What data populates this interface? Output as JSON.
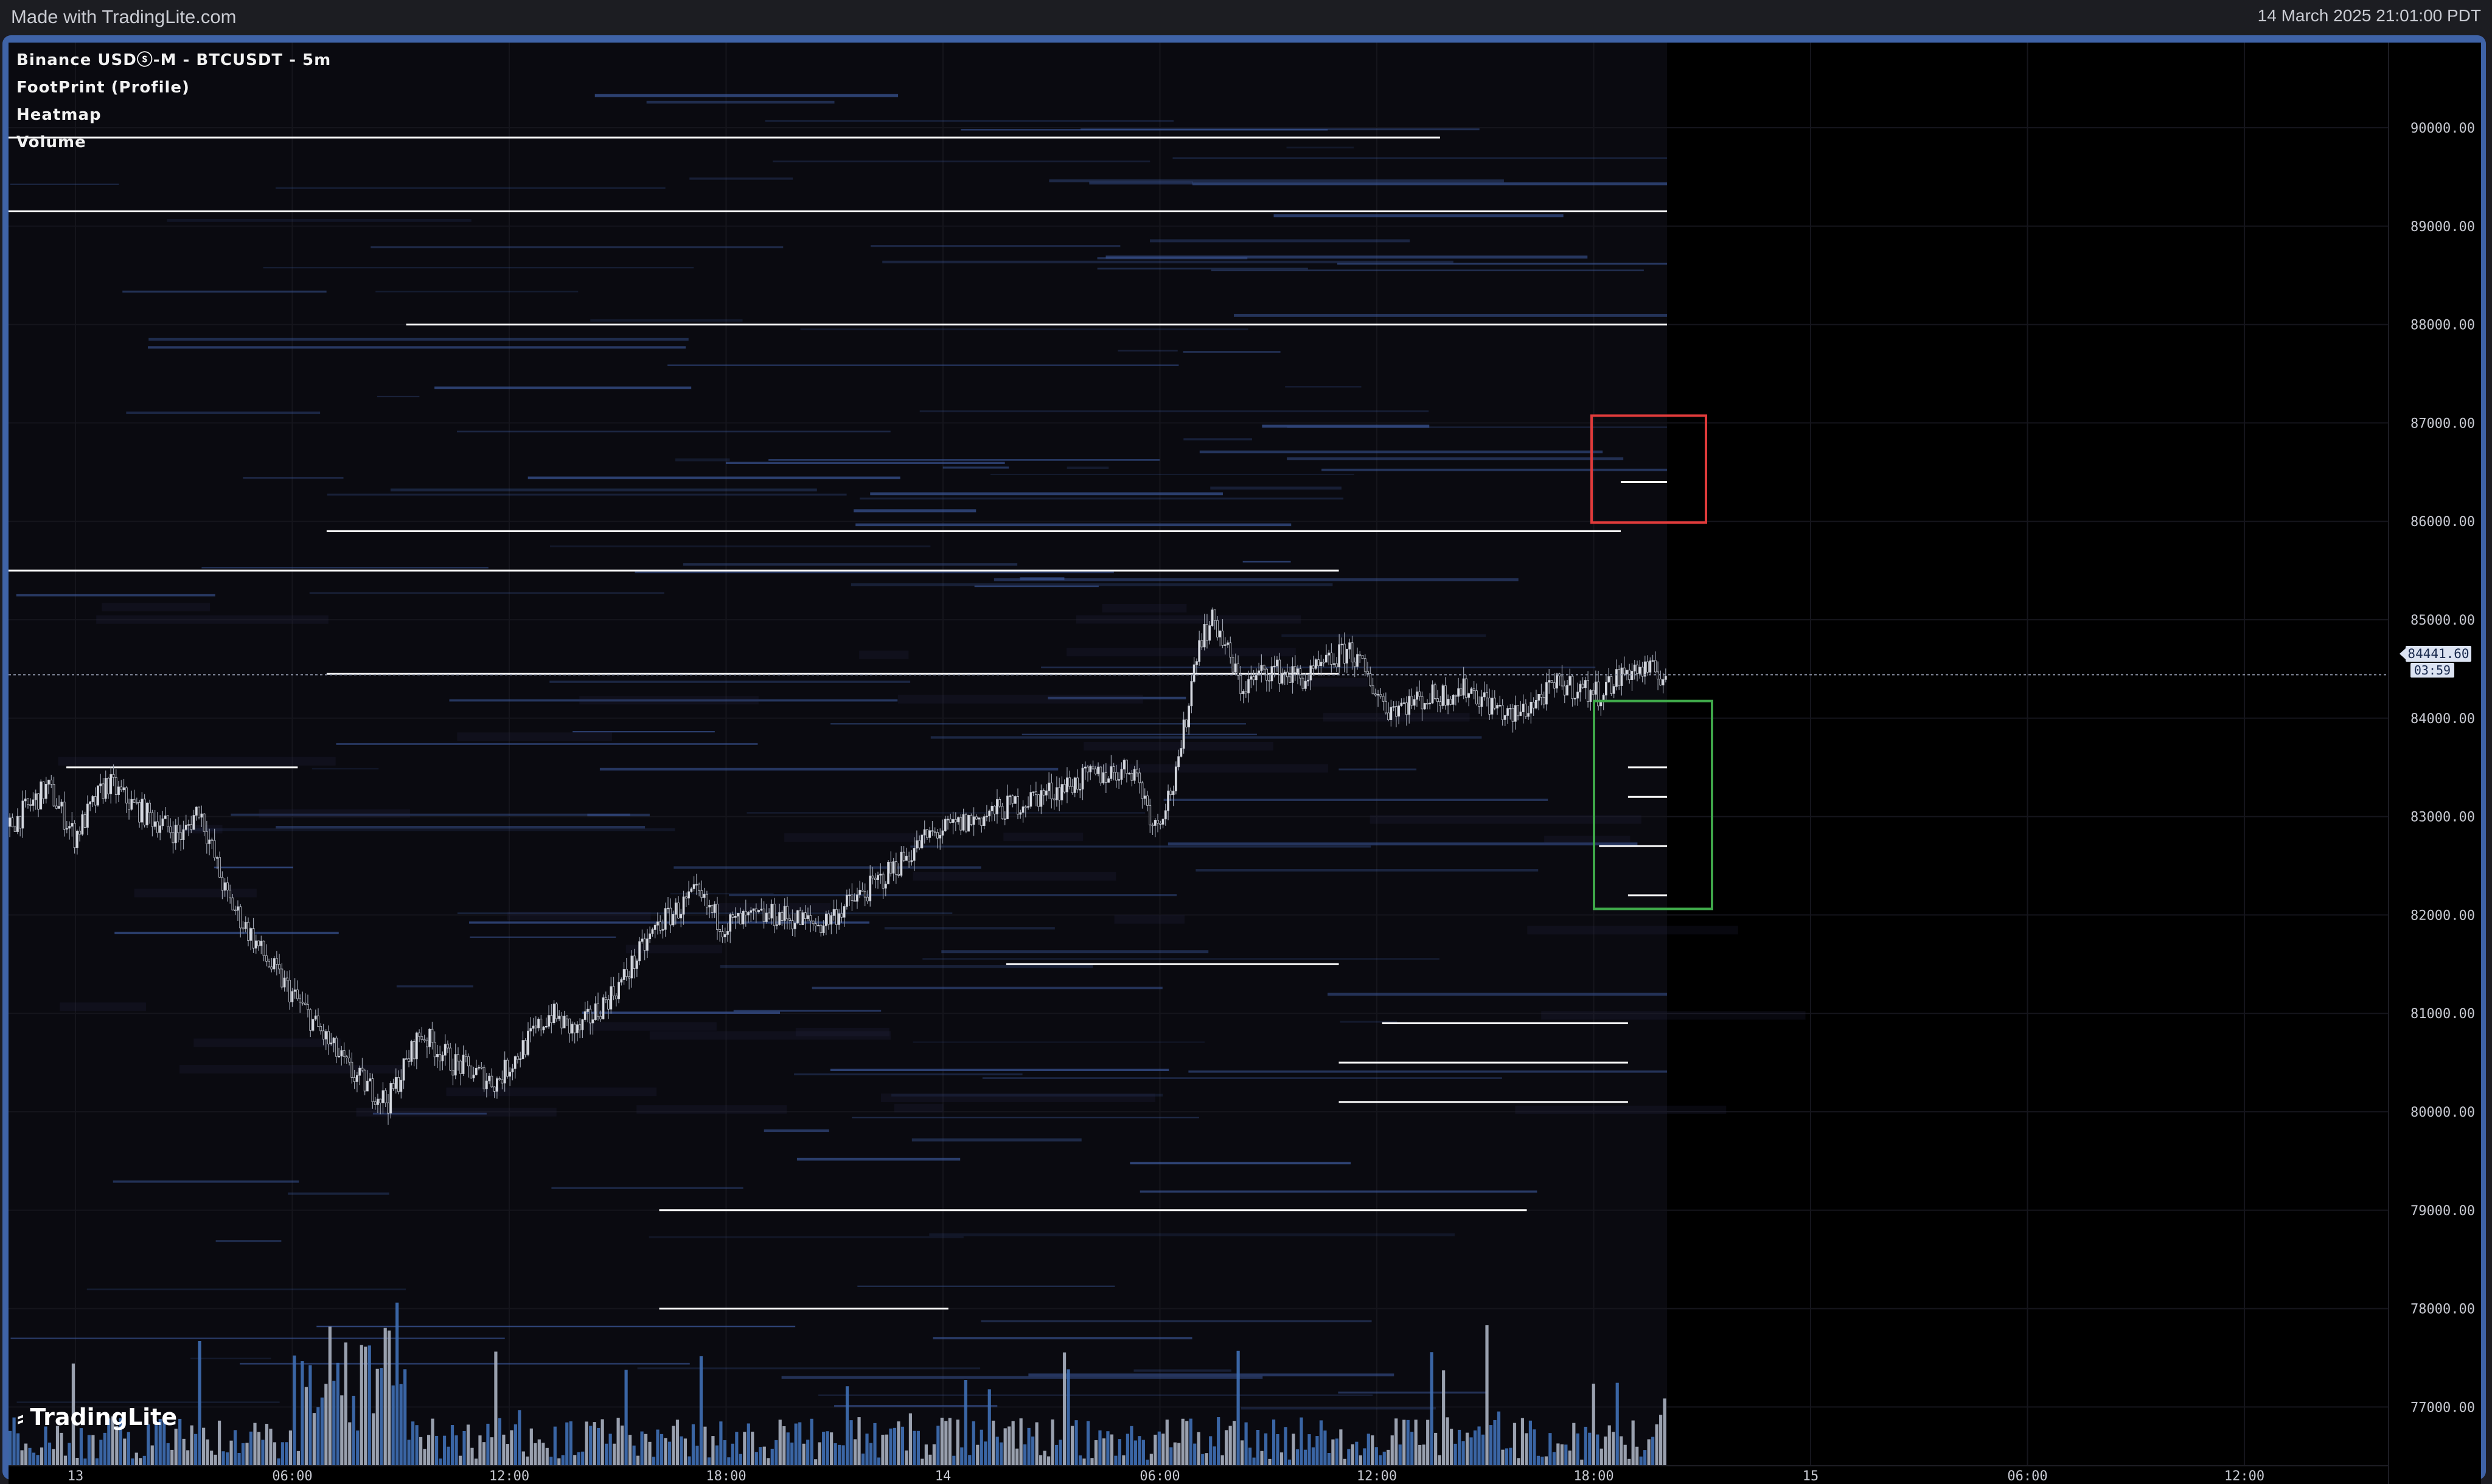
{
  "header": {
    "made_with": "Made with TradingLite.com",
    "timestamp": "14 March 2025 21:01:00 PDT"
  },
  "legend": {
    "instrument": "Binance USDⓢ-M - BTCUSDT - 5m",
    "indicators": [
      "FootPrint (Profile)",
      "Heatmap",
      "Volume"
    ]
  },
  "brand": {
    "name": "TradingLite"
  },
  "current_price": {
    "price": "84441.60",
    "countdown": "03:59"
  },
  "colors": {
    "frame": "#3f63a7",
    "background": "#000000",
    "heatmap_band": "#3d5a9e",
    "liquidity_line": "#ffffff",
    "volume_up": "#a8b0c0",
    "volume_down": "#3f6fb5",
    "sell_zone_box": "#e03b3b",
    "buy_zone_box": "#3fa84a"
  },
  "chart_data": {
    "type": "candlestick",
    "title": "Binance USDⓢ-M - BTCUSDT - 5m",
    "y_ticks": [
      "90000.00",
      "89000.00",
      "88000.00",
      "87000.00",
      "86000.00",
      "85000.00",
      "84000.00",
      "83000.00",
      "82000.00",
      "81000.00",
      "80000.00",
      "79000.00",
      "78000.00",
      "77000.00"
    ],
    "ylim": [
      76700,
      90900
    ],
    "x_ticks": [
      "13",
      "06:00",
      "12:00",
      "18:00",
      "14",
      "06:00",
      "12:00",
      "18:00",
      "15",
      "06:00",
      "12:00"
    ],
    "price_path": [
      {
        "t": 0,
        "p": 82900
      },
      {
        "t": 0.7,
        "p": 83300
      },
      {
        "t": 1.2,
        "p": 82800
      },
      {
        "t": 1.8,
        "p": 83350
      },
      {
        "t": 2.3,
        "p": 83100
      },
      {
        "t": 3.2,
        "p": 82800
      },
      {
        "t": 3.5,
        "p": 83100
      },
      {
        "t": 4.0,
        "p": 82200
      },
      {
        "t": 4.8,
        "p": 81500
      },
      {
        "t": 5.5,
        "p": 81000
      },
      {
        "t": 6.3,
        "p": 80400
      },
      {
        "t": 7.0,
        "p": 80100
      },
      {
        "t": 7.6,
        "p": 80800
      },
      {
        "t": 8.2,
        "p": 80500
      },
      {
        "t": 9.0,
        "p": 80300
      },
      {
        "t": 10.0,
        "p": 81000
      },
      {
        "t": 10.5,
        "p": 80800
      },
      {
        "t": 11.3,
        "p": 81300
      },
      {
        "t": 12.0,
        "p": 81900
      },
      {
        "t": 12.7,
        "p": 82200
      },
      {
        "t": 13.2,
        "p": 81900
      },
      {
        "t": 14.2,
        "p": 82000
      },
      {
        "t": 15.0,
        "p": 81900
      },
      {
        "t": 16.0,
        "p": 82300
      },
      {
        "t": 17.0,
        "p": 82800
      },
      {
        "t": 18.0,
        "p": 83000
      },
      {
        "t": 19.0,
        "p": 83200
      },
      {
        "t": 20.0,
        "p": 83400
      },
      {
        "t": 20.8,
        "p": 83500
      },
      {
        "t": 21.2,
        "p": 82900
      },
      {
        "t": 21.6,
        "p": 83400
      },
      {
        "t": 22.0,
        "p": 84800
      },
      {
        "t": 22.3,
        "p": 85000
      },
      {
        "t": 22.8,
        "p": 84300
      },
      {
        "t": 23.3,
        "p": 84500
      },
      {
        "t": 24.0,
        "p": 84400
      },
      {
        "t": 24.8,
        "p": 84700
      },
      {
        "t": 25.5,
        "p": 84100
      },
      {
        "t": 26.2,
        "p": 84200
      },
      {
        "t": 27.0,
        "p": 84300
      },
      {
        "t": 27.8,
        "p": 84000
      },
      {
        "t": 28.7,
        "p": 84350
      },
      {
        "t": 29.4,
        "p": 84250
      },
      {
        "t": 30.0,
        "p": 84500
      },
      {
        "t": 30.7,
        "p": 84441.6
      }
    ],
    "liquidity_levels": [
      {
        "price": 89900,
        "from": 0.0,
        "to": 19.8
      },
      {
        "price": 89150,
        "from": 0.0,
        "to": 30.7
      },
      {
        "price": 88000,
        "from": 5.5,
        "to": 30.7
      },
      {
        "price": 86400,
        "from": 22.3,
        "to": 30.7
      },
      {
        "price": 85900,
        "from": 4.4,
        "to": 22.3
      },
      {
        "price": 85500,
        "from": 0.0,
        "to": 18.4
      },
      {
        "price": 84450,
        "from": 4.4,
        "to": 18.4
      },
      {
        "price": 83500,
        "from": 0.8,
        "to": 4.0
      },
      {
        "price": 83500,
        "from": 22.4,
        "to": 30.7
      },
      {
        "price": 83200,
        "from": 22.4,
        "to": 30.7
      },
      {
        "price": 82700,
        "from": 22.0,
        "to": 30.7
      },
      {
        "price": 82200,
        "from": 22.4,
        "to": 30.7
      },
      {
        "price": 81500,
        "from": 13.8,
        "to": 18.4
      },
      {
        "price": 80900,
        "from": 19.0,
        "to": 22.4
      },
      {
        "price": 80500,
        "from": 18.4,
        "to": 22.4
      },
      {
        "price": 80100,
        "from": 18.4,
        "to": 22.4
      },
      {
        "price": 79000,
        "from": 9.0,
        "to": 21.0
      },
      {
        "price": 78000,
        "from": 9.0,
        "to": 13.0
      }
    ],
    "sell_zone": {
      "price_low": 86000,
      "price_high": 87000
    },
    "buy_zone": {
      "price_low": 82000,
      "price_high": 84100
    },
    "grid": true
  }
}
